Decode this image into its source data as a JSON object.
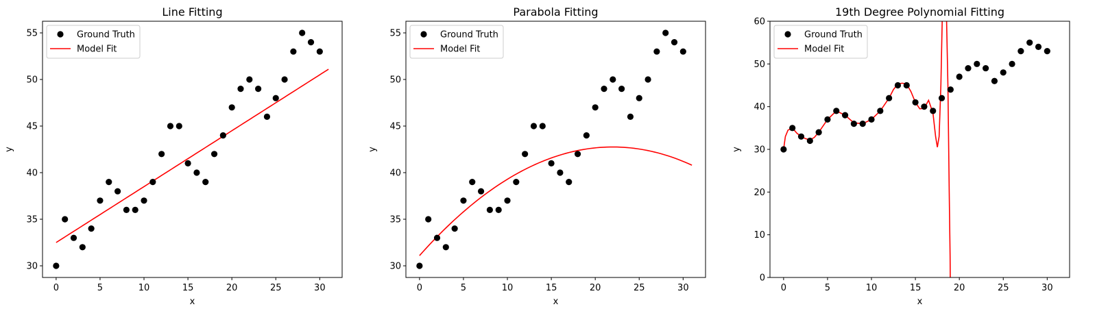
{
  "figure": {
    "background": "#ffffff"
  },
  "chart_data": [
    {
      "type": "scatter",
      "title": "Line Fitting",
      "xlabel": "x",
      "ylabel": "y",
      "xlim": [
        -1.55,
        32.55
      ],
      "ylim": [
        28.75,
        56.25
      ],
      "xticks": [
        0,
        5,
        10,
        15,
        20,
        25,
        30
      ],
      "yticks": [
        30,
        35,
        40,
        45,
        50,
        55
      ],
      "grid": false,
      "legend": {
        "position": "top-left",
        "entries": [
          "Ground Truth",
          "Model Fit"
        ]
      },
      "series": [
        {
          "name": "Ground Truth",
          "kind": "points",
          "color": "#000000",
          "x": [
            0,
            1,
            2,
            3,
            4,
            5,
            6,
            7,
            8,
            9,
            10,
            11,
            12,
            13,
            14,
            15,
            16,
            17,
            18,
            19,
            20,
            21,
            22,
            23,
            24,
            25,
            26,
            27,
            28,
            29,
            30
          ],
          "y": [
            30,
            35,
            33,
            32,
            34,
            37,
            39,
            38,
            36,
            36,
            37,
            39,
            42,
            45,
            45,
            41,
            40,
            39,
            42,
            44,
            47,
            49,
            50,
            49,
            46,
            48,
            50,
            53,
            55,
            54,
            53
          ]
        },
        {
          "name": "Model Fit",
          "kind": "line",
          "color": "#ff0000",
          "model": "linear",
          "x_range": [
            0,
            31
          ],
          "coefficients": [
            32.5,
            0.6
          ]
        }
      ]
    },
    {
      "type": "scatter",
      "title": "Parabola Fitting",
      "xlabel": "x",
      "ylabel": "y",
      "xlim": [
        -1.55,
        32.55
      ],
      "ylim": [
        28.75,
        56.25
      ],
      "xticks": [
        0,
        5,
        10,
        15,
        20,
        25,
        30
      ],
      "yticks": [
        30,
        35,
        40,
        45,
        50,
        55
      ],
      "grid": false,
      "legend": {
        "position": "top-left",
        "entries": [
          "Ground Truth",
          "Model Fit"
        ]
      },
      "series": [
        {
          "name": "Ground Truth",
          "kind": "points",
          "color": "#000000",
          "x": [
            0,
            1,
            2,
            3,
            4,
            5,
            6,
            7,
            8,
            9,
            10,
            11,
            12,
            13,
            14,
            15,
            16,
            17,
            18,
            19,
            20,
            21,
            22,
            23,
            24,
            25,
            26,
            27,
            28,
            29,
            30
          ],
          "y": [
            30,
            35,
            33,
            32,
            34,
            37,
            39,
            38,
            36,
            36,
            37,
            39,
            42,
            45,
            45,
            41,
            40,
            39,
            42,
            44,
            47,
            49,
            50,
            49,
            46,
            48,
            50,
            53,
            55,
            54,
            53
          ]
        },
        {
          "name": "Model Fit",
          "kind": "line",
          "color": "#ff0000",
          "model": "quadratic",
          "x_range": [
            0,
            31
          ],
          "coefficients": [
            31.1,
            1.06,
            -0.0241
          ]
        }
      ]
    },
    {
      "type": "scatter",
      "title": "19th Degree Polynomial Fitting",
      "xlabel": "x",
      "ylabel": "y",
      "xlim": [
        -1.55,
        32.55
      ],
      "ylim": [
        0,
        60
      ],
      "xticks": [
        0,
        5,
        10,
        15,
        20,
        25,
        30
      ],
      "yticks": [
        0,
        10,
        20,
        30,
        40,
        50,
        60
      ],
      "grid": false,
      "legend": {
        "position": "top-left",
        "entries": [
          "Ground Truth",
          "Model Fit"
        ]
      },
      "series": [
        {
          "name": "Ground Truth",
          "kind": "points",
          "color": "#000000",
          "x": [
            0,
            1,
            2,
            3,
            4,
            5,
            6,
            7,
            8,
            9,
            10,
            11,
            12,
            13,
            14,
            15,
            16,
            17,
            18,
            19,
            20,
            21,
            22,
            23,
            24,
            25,
            26,
            27,
            28,
            29,
            30
          ],
          "y": [
            30,
            35,
            33,
            32,
            34,
            37,
            39,
            38,
            36,
            36,
            37,
            39,
            42,
            45,
            45,
            41,
            40,
            39,
            42,
            44,
            47,
            49,
            50,
            49,
            46,
            48,
            50,
            53,
            55,
            54,
            53
          ]
        },
        {
          "name": "Model Fit",
          "kind": "line",
          "color": "#ff0000",
          "x": [
            0,
            0.2,
            0.5,
            1,
            1.5,
            2,
            2.5,
            3,
            3.5,
            4,
            5,
            6,
            7,
            8,
            9,
            10,
            11,
            12,
            12.5,
            13,
            13.5,
            14,
            14.5,
            15,
            15.5,
            16,
            16.5,
            17,
            17.3,
            17.5,
            17.7,
            17.9,
            18.1,
            18.3,
            18.5,
            18.7,
            18.85,
            18.95,
            19.0
          ],
          "y": [
            30,
            33,
            34.5,
            35,
            33.8,
            33,
            32.5,
            32.2,
            32.8,
            34,
            37,
            39,
            38,
            36.2,
            36,
            37,
            39,
            42,
            44,
            45.3,
            45.5,
            45.3,
            43.5,
            41,
            39.5,
            39.6,
            41.5,
            38.5,
            33,
            30.5,
            33,
            45,
            65,
            70,
            65,
            45,
            20,
            5,
            -10
          ]
        }
      ]
    }
  ]
}
